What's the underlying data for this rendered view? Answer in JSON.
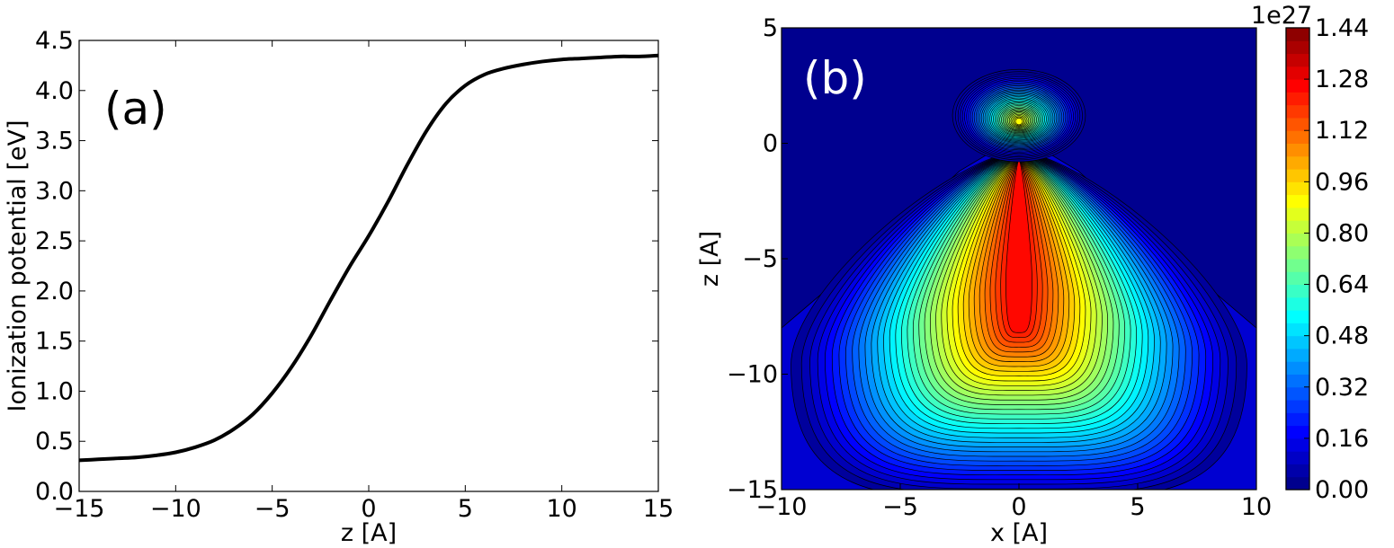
{
  "chart_data": [
    {
      "type": "line",
      "panel_label": "(a)",
      "xlabel": "z [A]",
      "ylabel": "Ionization potential [eV]",
      "xlim": [
        -15,
        15
      ],
      "ylim": [
        0.0,
        4.5
      ],
      "xticks": [
        "−15",
        "−10",
        "−5",
        "0",
        "5",
        "10",
        "15"
      ],
      "yticks": [
        "0.0",
        "0.5",
        "1.0",
        "1.5",
        "2.0",
        "2.5",
        "3.0",
        "3.5",
        "4.0",
        "4.5"
      ],
      "grid": false,
      "series": [
        {
          "color": "#000000",
          "x": [
            -15,
            -14,
            -13,
            -12,
            -11,
            -10,
            -9,
            -8,
            -7,
            -6,
            -5,
            -4,
            -3,
            -2,
            -1,
            0,
            1,
            2,
            3,
            4,
            5,
            6,
            7,
            8,
            9,
            10,
            11,
            12,
            13,
            14,
            15
          ],
          "y": [
            0.31,
            0.32,
            0.33,
            0.34,
            0.36,
            0.39,
            0.44,
            0.51,
            0.62,
            0.77,
            0.98,
            1.24,
            1.55,
            1.9,
            2.24,
            2.55,
            2.89,
            3.26,
            3.6,
            3.87,
            4.05,
            4.16,
            4.22,
            4.26,
            4.29,
            4.31,
            4.32,
            4.33,
            4.34,
            4.34,
            4.35
          ]
        }
      ]
    },
    {
      "type": "heatmap",
      "panel_label": "(b)",
      "xlabel": "x [A]",
      "ylabel": "z [A]",
      "xlim": [
        -10,
        10
      ],
      "ylim": [
        -15,
        5
      ],
      "xticks": [
        "−10",
        "−5",
        "0",
        "5",
        "10"
      ],
      "yticks": [
        "−15",
        "−10",
        "−5",
        "0",
        "5"
      ],
      "colormap": "jet",
      "colorbar_multiplier": "1e27",
      "colorbar_range": [
        0.0,
        1.44
      ],
      "colorbar_ticks": [
        "0.00",
        "0.16",
        "0.32",
        "0.48",
        "0.64",
        "0.80",
        "0.96",
        "1.12",
        "1.28",
        "1.44"
      ],
      "contour_levels": 36,
      "grid": false
    }
  ]
}
